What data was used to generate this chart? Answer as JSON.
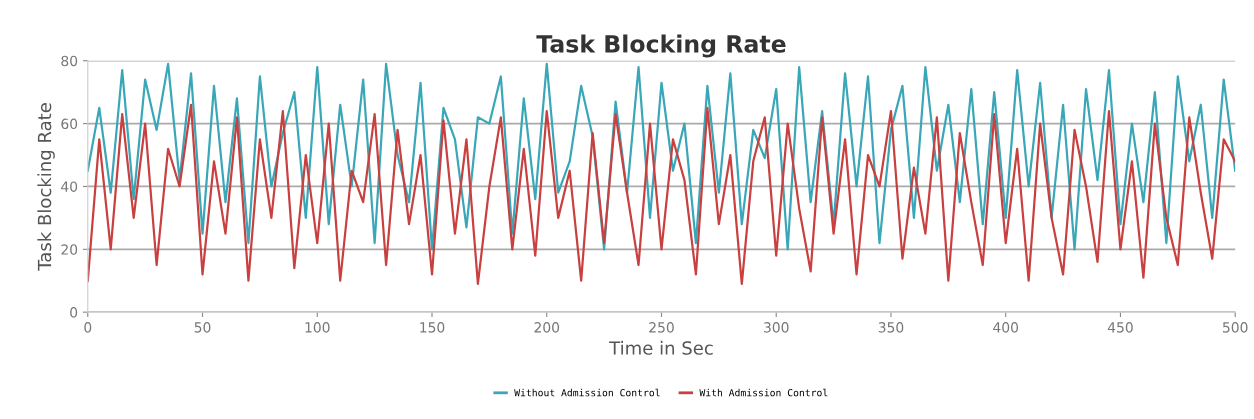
{
  "chart_data": {
    "type": "line",
    "title": "Task Blocking Rate",
    "xlabel": "Time in Sec",
    "ylabel": "Task Blocking Rate",
    "x": [
      0,
      5,
      10,
      15,
      20,
      25,
      30,
      35,
      40,
      45,
      50,
      55,
      60,
      65,
      70,
      75,
      80,
      85,
      90,
      95,
      100,
      105,
      110,
      115,
      120,
      125,
      130,
      135,
      140,
      145,
      150,
      155,
      160,
      165,
      170,
      175,
      180,
      185,
      190,
      195,
      200,
      205,
      210,
      215,
      220,
      225,
      230,
      235,
      240,
      245,
      250,
      255,
      260,
      265,
      270,
      275,
      280,
      285,
      290,
      295,
      300,
      305,
      310,
      315,
      320,
      325,
      330,
      335,
      340,
      345,
      350,
      355,
      360,
      365,
      370,
      375,
      380,
      385,
      390,
      395,
      400,
      405,
      410,
      415,
      420,
      425,
      430,
      435,
      440,
      445,
      450,
      455,
      460,
      465,
      470,
      475,
      480,
      485,
      490,
      495,
      500
    ],
    "series": [
      {
        "name": "Without Admission Control",
        "color": "#3aa7b8",
        "values": [
          45,
          65,
          38,
          77,
          36,
          74,
          58,
          79,
          42,
          76,
          25,
          72,
          35,
          68,
          22,
          75,
          40,
          57,
          70,
          30,
          78,
          28,
          66,
          40,
          74,
          22,
          79,
          50,
          35,
          73,
          20,
          65,
          55,
          27,
          62,
          60,
          75,
          25,
          68,
          36,
          79,
          38,
          48,
          72,
          56,
          20,
          67,
          38,
          78,
          30,
          73,
          45,
          60,
          22,
          72,
          38,
          76,
          28,
          58,
          49,
          71,
          20,
          78,
          35,
          64,
          28,
          76,
          40,
          75,
          22,
          58,
          72,
          30,
          78,
          45,
          66,
          35,
          71,
          28,
          70,
          30,
          77,
          40,
          73,
          30,
          66,
          20,
          71,
          42,
          77,
          28,
          60,
          35,
          70,
          22,
          75,
          48,
          66,
          30,
          74,
          45
        ]
      },
      {
        "name": "With Admission Control",
        "color": "#c8403f",
        "values": [
          10,
          55,
          20,
          63,
          30,
          60,
          15,
          52,
          40,
          66,
          12,
          48,
          25,
          62,
          10,
          55,
          30,
          64,
          14,
          50,
          22,
          60,
          10,
          45,
          35,
          63,
          15,
          58,
          28,
          50,
          12,
          61,
          25,
          55,
          9,
          40,
          62,
          20,
          52,
          18,
          64,
          30,
          45,
          10,
          57,
          22,
          63,
          38,
          15,
          60,
          20,
          55,
          42,
          12,
          65,
          28,
          50,
          9,
          48,
          62,
          18,
          60,
          33,
          13,
          62,
          25,
          55,
          12,
          50,
          40,
          64,
          17,
          46,
          25,
          62,
          10,
          57,
          35,
          15,
          63,
          22,
          52,
          10,
          60,
          30,
          12,
          58,
          40,
          16,
          64,
          20,
          48,
          11,
          60,
          30,
          15,
          62,
          38,
          17,
          55,
          48
        ]
      }
    ],
    "xlim": [
      0,
      500
    ],
    "xticks": [
      0,
      50,
      100,
      150,
      200,
      250,
      300,
      350,
      400,
      450,
      500
    ],
    "ylim": [
      0,
      80
    ],
    "yticks": [
      0,
      20,
      40,
      60,
      80
    ],
    "grid": "y",
    "legend": "bottom",
    "marker": "none",
    "line_style": "solid"
  }
}
